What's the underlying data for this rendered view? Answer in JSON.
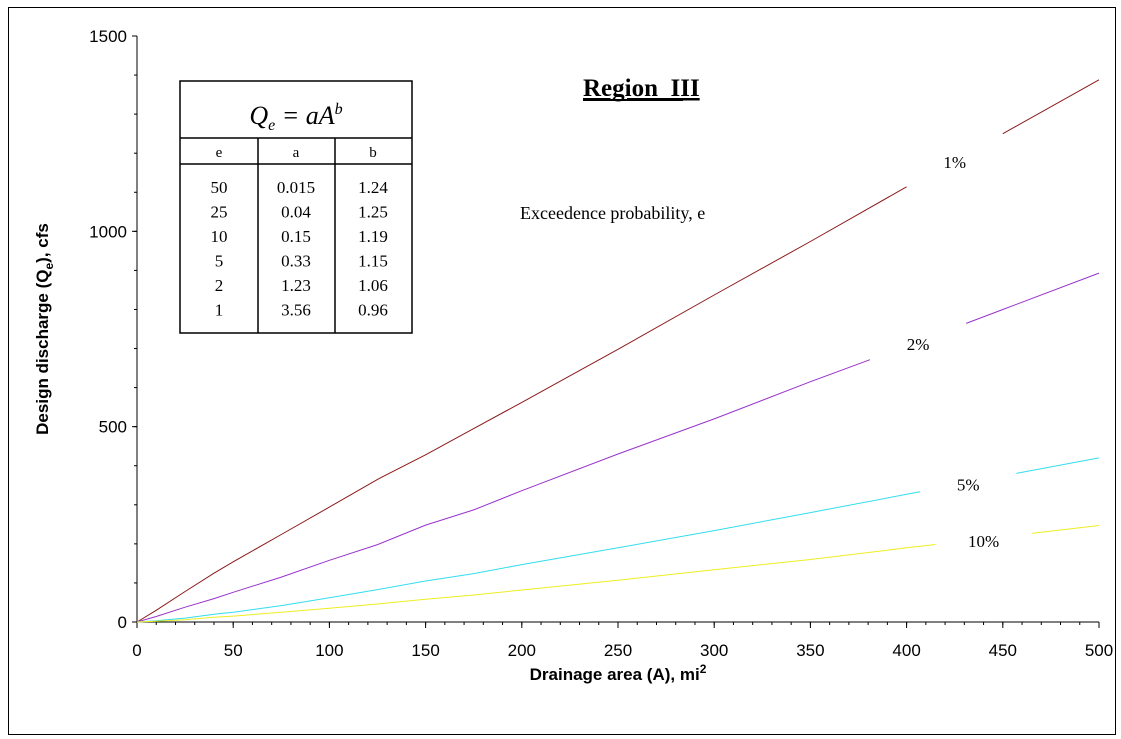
{
  "chart_data": {
    "type": "line",
    "title": "Region  III",
    "xlabel": "Drainage area (A), mi",
    "xlabel_sup": "2",
    "ylabel": "Design discharge (Q",
    "ylabel_sub": "e",
    "ylabel_end": "), cfs",
    "xlim": [
      0,
      500
    ],
    "ylim": [
      0,
      1500
    ],
    "x_ticks": [
      "0",
      "50",
      "100",
      "150",
      "200",
      "250",
      "300",
      "350",
      "400",
      "450",
      "500"
    ],
    "y_ticks": [
      "0",
      "500",
      "1000",
      "1500"
    ],
    "grid": false,
    "legend": "none",
    "annotation": "Exceedence probability, e",
    "formula": {
      "lhs": "Q",
      "lhs_sub": "e",
      "rhs": " = aA",
      "rhs_sup": "b"
    },
    "table": {
      "headers": [
        "e",
        "a",
        "b"
      ],
      "rows": [
        [
          "50",
          "0.015",
          "1.24"
        ],
        [
          "25",
          "0.04",
          "1.25"
        ],
        [
          "10",
          "0.15",
          "1.19"
        ],
        [
          "5",
          "0.33",
          "1.15"
        ],
        [
          "2",
          "1.23",
          "1.06"
        ],
        [
          "1",
          "3.56",
          "0.96"
        ]
      ]
    },
    "x": [
      0,
      10,
      25,
      40,
      50,
      75,
      100,
      125,
      150,
      175,
      200,
      250,
      300,
      350,
      400,
      450,
      500
    ],
    "series": [
      {
        "label": "1%",
        "color": "#8B1A1A",
        "values": [
          0,
          30,
          78,
          125,
          154,
          224,
          294,
          365,
          428,
          495,
          562,
          698,
          837,
          974,
          1114,
          1250,
          1388
        ]
      },
      {
        "label": "2%",
        "color": "#9933CC",
        "values": [
          0,
          14,
          38,
          60,
          76,
          115,
          158,
          198,
          248,
          287,
          336,
          430,
          520,
          615,
          706,
          800,
          893
        ]
      },
      {
        "label": "5%",
        "color": "#33DDEE",
        "values": [
          0,
          3,
          10,
          20,
          25,
          42,
          62,
          83,
          105,
          124,
          147,
          190,
          234,
          280,
          327,
          374,
          420
        ]
      },
      {
        "label": "10%",
        "color": "#EEEE22",
        "values": [
          0,
          2,
          6,
          12,
          15,
          25,
          35,
          46,
          58,
          69,
          82,
          107,
          134,
          160,
          190,
          218,
          247
        ]
      }
    ],
    "label_positions_x": [
      425,
      406,
      432,
      440
    ]
  }
}
